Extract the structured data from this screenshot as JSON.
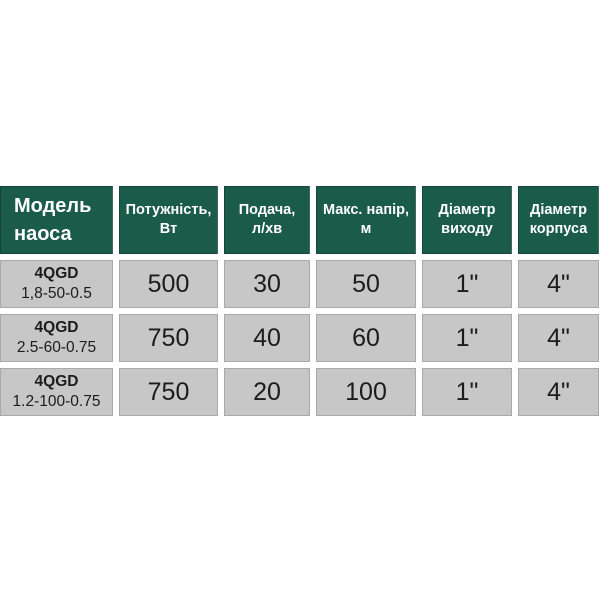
{
  "chart_data": {
    "type": "table",
    "title": "",
    "columns": [
      {
        "id": "model",
        "line1": "Модель",
        "line2": "наоса"
      },
      {
        "id": "power",
        "line1": "Потужність,",
        "line2": "Вт"
      },
      {
        "id": "flow",
        "line1": "Подача,",
        "line2": "л/хв"
      },
      {
        "id": "max_head",
        "line1": "Макс. напір,",
        "line2": "м"
      },
      {
        "id": "outlet",
        "line1": "Діаметр",
        "line2": "виходу"
      },
      {
        "id": "body",
        "line1": "Діаметр",
        "line2": "корпуса"
      }
    ],
    "rows": [
      {
        "model": "4QGD",
        "code": "1,8-50-0.5",
        "power_w": "500",
        "flow_l_min": "30",
        "max_head_m": "50",
        "outlet_diameter": "1\"",
        "body_diameter": "4\""
      },
      {
        "model": "4QGD",
        "code": "2.5-60-0.75",
        "power_w": "750",
        "flow_l_min": "40",
        "max_head_m": "60",
        "outlet_diameter": "1\"",
        "body_diameter": "4\""
      },
      {
        "model": "4QGD",
        "code": "1.2-100-0.75",
        "power_w": "750",
        "flow_l_min": "20",
        "max_head_m": "100",
        "outlet_diameter": "1\"",
        "body_diameter": "4\""
      }
    ]
  },
  "colors": {
    "header_bg": "#1B5B4A",
    "header_text": "#FFFFFF",
    "row_bg": "#C7C7C7",
    "row_text": "#1C1C1C",
    "page_bg": "#FFFFFF"
  }
}
